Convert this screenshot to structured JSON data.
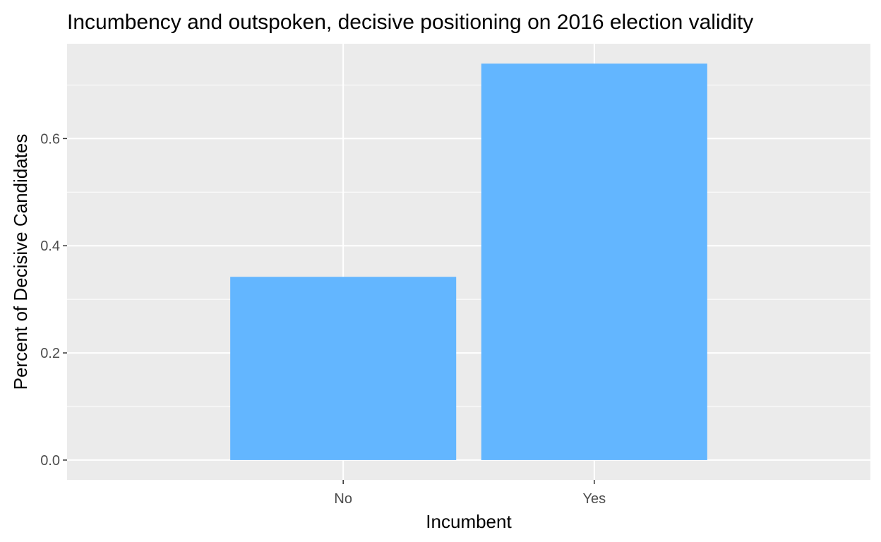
{
  "chart_data": {
    "type": "bar",
    "title": "Incumbency and outspoken, decisive positioning on 2016 election validity",
    "xlabel": "Incumbent",
    "ylabel": "Percent of Decisive Candidates",
    "categories": [
      "No",
      "Yes"
    ],
    "values": [
      0.342,
      0.74
    ],
    "ylim": [
      -0.037,
      0.777
    ],
    "yticks": [
      0.0,
      0.2,
      0.4,
      0.6
    ],
    "ytick_labels": [
      "0.0",
      "0.2",
      "0.4",
      "0.6"
    ],
    "grid": true,
    "legend": "none",
    "colors": {
      "bar": "#63B6FF",
      "panel": "#EBEBEB",
      "grid_major": "#FFFFFF",
      "tick": "#333333"
    }
  }
}
